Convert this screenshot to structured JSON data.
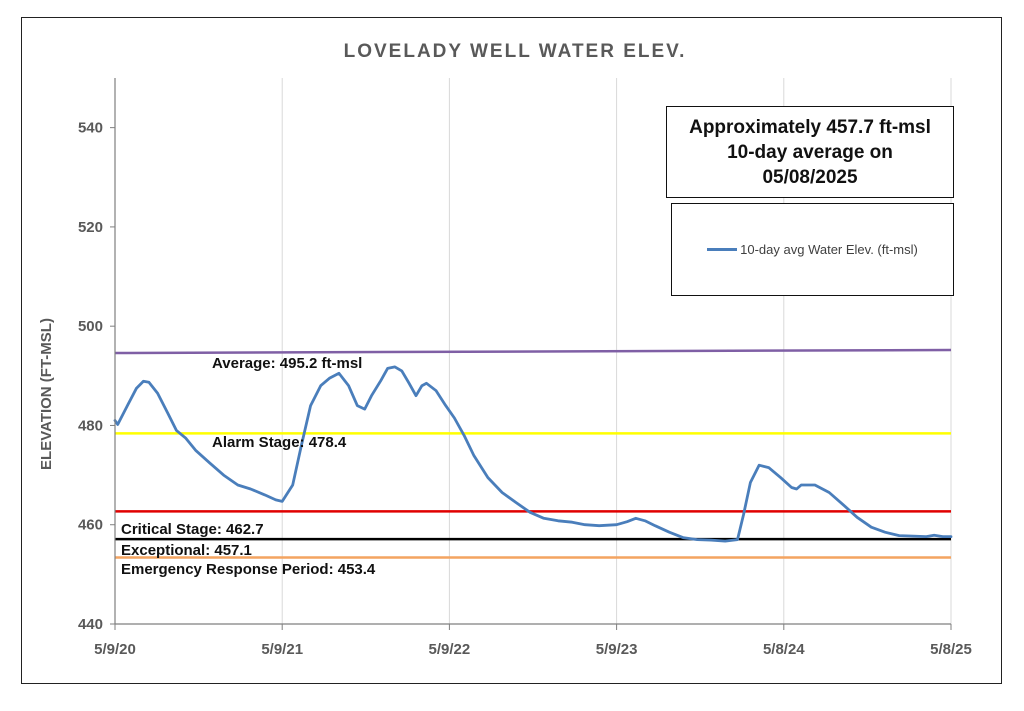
{
  "chart_data": {
    "type": "line",
    "title": "LOVELADY WELL WATER ELEV.",
    "ylabel": "ELEVATION (FT-MSL)",
    "xlabel": "",
    "ylim": [
      440,
      550
    ],
    "yticks": [
      440,
      460,
      480,
      500,
      520,
      540
    ],
    "xticks": [
      "5/9/20",
      "5/9/21",
      "5/9/22",
      "5/9/23",
      "5/8/24",
      "5/8/25"
    ],
    "xrange": [
      "2020-05-09",
      "2025-05-08"
    ],
    "series": [
      {
        "name": "10-day avg Water Elev. (ft-msl)",
        "color": "#4a7ebb",
        "points": [
          [
            "2020-05-09",
            481.0
          ],
          [
            "2020-05-15",
            480.2
          ],
          [
            "2020-06-05",
            484.0
          ],
          [
            "2020-06-25",
            487.5
          ],
          [
            "2020-07-10",
            488.9
          ],
          [
            "2020-07-22",
            488.7
          ],
          [
            "2020-08-10",
            486.5
          ],
          [
            "2020-09-01",
            482.5
          ],
          [
            "2020-09-20",
            479.0
          ],
          [
            "2020-10-10",
            477.5
          ],
          [
            "2020-11-01",
            475.0
          ],
          [
            "2020-12-01",
            472.5
          ],
          [
            "2021-01-01",
            470.0
          ],
          [
            "2021-02-01",
            468.0
          ],
          [
            "2021-03-01",
            467.2
          ],
          [
            "2021-04-01",
            466.0
          ],
          [
            "2021-04-25",
            465.0
          ],
          [
            "2021-05-09",
            464.7
          ],
          [
            "2021-06-01",
            468.0
          ],
          [
            "2021-06-20",
            476.0
          ],
          [
            "2021-07-10",
            484.0
          ],
          [
            "2021-08-01",
            488.0
          ],
          [
            "2021-08-20",
            489.5
          ],
          [
            "2021-09-10",
            490.5
          ],
          [
            "2021-10-01",
            488.0
          ],
          [
            "2021-10-20",
            484.0
          ],
          [
            "2021-11-05",
            483.3
          ],
          [
            "2021-11-20",
            486.0
          ],
          [
            "2021-12-10",
            489.0
          ],
          [
            "2021-12-25",
            491.5
          ],
          [
            "2022-01-10",
            491.8
          ],
          [
            "2022-01-25",
            491.0
          ],
          [
            "2022-02-10",
            488.5
          ],
          [
            "2022-02-25",
            486.0
          ],
          [
            "2022-03-10",
            488.0
          ],
          [
            "2022-03-20",
            488.5
          ],
          [
            "2022-04-10",
            487.0
          ],
          [
            "2022-05-01",
            484.0
          ],
          [
            "2022-05-20",
            481.5
          ],
          [
            "2022-06-10",
            478.0
          ],
          [
            "2022-07-01",
            474.0
          ],
          [
            "2022-08-01",
            469.5
          ],
          [
            "2022-09-01",
            466.5
          ],
          [
            "2022-10-01",
            464.5
          ],
          [
            "2022-11-01",
            462.5
          ],
          [
            "2022-12-01",
            461.3
          ],
          [
            "2023-01-01",
            460.8
          ],
          [
            "2023-02-01",
            460.5
          ],
          [
            "2023-03-01",
            460.0
          ],
          [
            "2023-04-01",
            459.8
          ],
          [
            "2023-05-09",
            460.0
          ],
          [
            "2023-06-01",
            460.6
          ],
          [
            "2023-06-20",
            461.3
          ],
          [
            "2023-07-10",
            460.8
          ],
          [
            "2023-08-01",
            459.8
          ],
          [
            "2023-09-01",
            458.5
          ],
          [
            "2023-10-01",
            457.4
          ],
          [
            "2023-11-01",
            457.0
          ],
          [
            "2023-12-01",
            456.9
          ],
          [
            "2024-01-01",
            456.7
          ],
          [
            "2024-01-28",
            457.0
          ],
          [
            "2024-02-10",
            462.0
          ],
          [
            "2024-02-25",
            468.5
          ],
          [
            "2024-03-15",
            472.0
          ],
          [
            "2024-04-05",
            471.5
          ],
          [
            "2024-05-01",
            469.5
          ],
          [
            "2024-05-25",
            467.5
          ],
          [
            "2024-06-05",
            467.2
          ],
          [
            "2024-06-15",
            468.0
          ],
          [
            "2024-07-15",
            468.0
          ],
          [
            "2024-08-15",
            466.5
          ],
          [
            "2024-09-15",
            464.0
          ],
          [
            "2024-10-15",
            461.5
          ],
          [
            "2024-11-15",
            459.5
          ],
          [
            "2024-12-15",
            458.5
          ],
          [
            "2025-01-15",
            457.8
          ],
          [
            "2025-02-15",
            457.7
          ],
          [
            "2025-03-15",
            457.6
          ],
          [
            "2025-04-01",
            457.9
          ],
          [
            "2025-04-20",
            457.6
          ],
          [
            "2025-05-08",
            457.6
          ]
        ]
      }
    ],
    "reference_lines": [
      {
        "label": "Average: 495.2 ft-msl",
        "start_value": 494.6,
        "end_value": 495.2,
        "color": "#7f5fa5"
      },
      {
        "label": "Alarm Stage: 478.4",
        "value": 478.4,
        "color": "#ffff00"
      },
      {
        "label": "Critical Stage: 462.7",
        "value": 462.7,
        "color": "#e00000"
      },
      {
        "label": "Exceptional: 457.1",
        "value": 457.1,
        "color": "#000000"
      },
      {
        "label": "Emergency Response Period: 453.4",
        "value": 453.4,
        "color": "#f4a460"
      }
    ],
    "annotation": [
      "Approximately 457.7 ft-msl",
      "10-day average on",
      "05/08/2025"
    ],
    "legend": {
      "position": "top-right",
      "entry": "10-day avg Water Elev. (ft-msl)"
    },
    "grid": {
      "vertical": true,
      "horizontal": false
    }
  }
}
